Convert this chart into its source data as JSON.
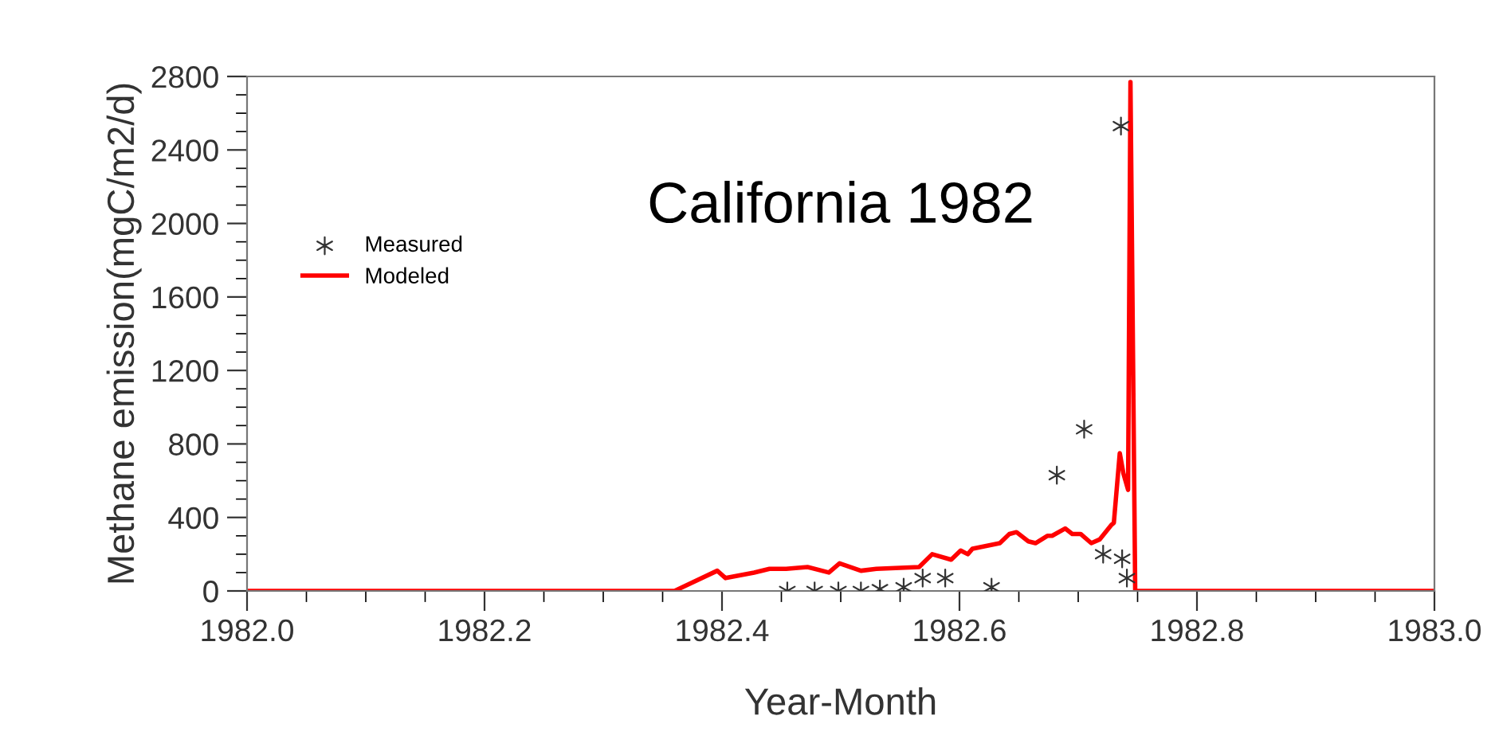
{
  "chart_data": {
    "type": "line",
    "title": "California 1982",
    "xlabel": "Year-Month",
    "ylabel": "Methane emission(mgC/m2/d)",
    "xlim": [
      1982.0,
      1983.0
    ],
    "xticks": [
      {
        "value": 1982.0,
        "label": "1982.0"
      },
      1982.2,
      1982.4,
      1982.6,
      1982.8,
      {
        "value": 1983.0,
        "label": "1983.0"
      }
    ],
    "ylim": [
      0,
      2800
    ],
    "yticks": [
      0,
      400,
      800,
      1200,
      1600,
      2000,
      2400,
      2800
    ],
    "grid": false,
    "legend": "top left",
    "series": [
      {
        "name": "Measured",
        "type": "scatter",
        "color": "#333333",
        "marker": "cross",
        "x": [
          1982.455,
          1982.478,
          1982.498,
          1982.517,
          1982.533,
          1982.553,
          1982.569,
          1982.588,
          1982.627,
          1982.682,
          1982.705,
          1982.721,
          1982.736,
          1982.737,
          1982.741
        ],
        "values": [
          0,
          0,
          0,
          0,
          10,
          20,
          70,
          70,
          20,
          630,
          880,
          200,
          2530,
          175,
          70
        ]
      },
      {
        "name": "Modeled",
        "color": "#ff0000",
        "line_style": "solid",
        "x": [
          1982.0,
          1982.36,
          1982.396,
          1982.403,
          1982.427,
          1982.44,
          1982.454,
          1982.472,
          1982.49,
          1982.499,
          1982.517,
          1982.53,
          1982.566,
          1982.577,
          1982.593,
          1982.601,
          1982.607,
          1982.611,
          1982.634,
          1982.642,
          1982.648,
          1982.658,
          1982.664,
          1982.674,
          1982.678,
          1982.689,
          1982.695,
          1982.702,
          1982.711,
          1982.718,
          1982.728,
          1982.73,
          1982.735,
          1982.738,
          1982.742,
          1982.744,
          1982.748,
          1983.0
        ],
        "values": [
          0,
          0,
          110,
          70,
          100,
          120,
          120,
          130,
          100,
          150,
          110,
          120,
          130,
          200,
          170,
          220,
          200,
          230,
          260,
          310,
          320,
          270,
          260,
          300,
          300,
          340,
          310,
          310,
          260,
          280,
          360,
          370,
          750,
          640,
          550,
          2770,
          0,
          0
        ]
      }
    ]
  }
}
